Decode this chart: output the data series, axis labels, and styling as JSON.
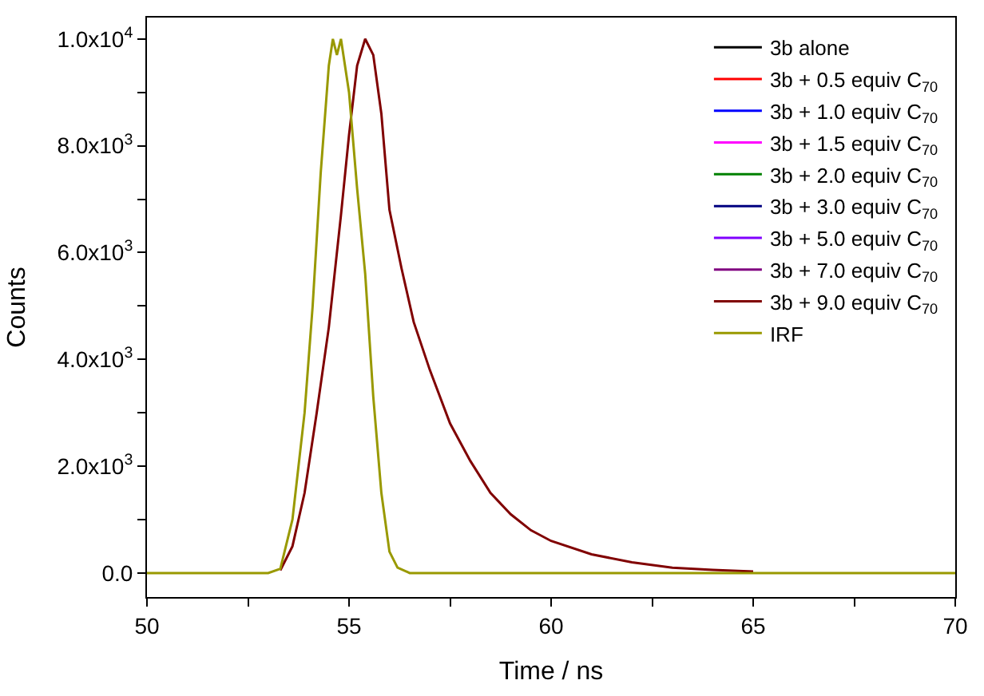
{
  "chart_data": {
    "type": "line",
    "xlabel": "Time / ns",
    "ylabel": "Counts",
    "xlim": [
      50,
      70
    ],
    "ylim": [
      -450,
      10400
    ],
    "xticks": [
      50,
      {
        "value": 52.5,
        "label": null
      },
      55,
      {
        "value": 57.5,
        "label": null
      },
      60,
      {
        "value": 62.5,
        "label": null
      },
      65,
      {
        "value": 67.5,
        "label": null
      },
      70
    ],
    "yticks": [
      {
        "value": 0,
        "label": "0.0"
      },
      {
        "value": 1000,
        "label": null
      },
      {
        "value": 2000,
        "label": "2.0x10$^{3}$"
      },
      {
        "value": 3000,
        "label": null
      },
      {
        "value": 4000,
        "label": "4.0x10$^{3}$"
      },
      {
        "value": 5000,
        "label": null
      },
      {
        "value": 6000,
        "label": "6.0x10$^{3}$"
      },
      {
        "value": 7000,
        "label": null
      },
      {
        "value": 8000,
        "label": "8.0x10$^{3}$"
      },
      {
        "value": 9000,
        "label": null
      },
      {
        "value": 10000,
        "label": "1.0x10$^{4}$"
      }
    ],
    "x": [
      53.3,
      53.6,
      53.9,
      54.2,
      54.5,
      54.8,
      55.0,
      55.2,
      55.4,
      55.6,
      55.8,
      56.0,
      56.3,
      56.6,
      57,
      57.5,
      58,
      58.5,
      59,
      59.5,
      60,
      61,
      62,
      63,
      64,
      65
    ],
    "legend": "top right",
    "line_style": "solid",
    "marker": "none",
    "series": [
      {
        "name": "3b alone",
        "color": "#000000",
        "values": [
          null,
          null,
          null,
          null,
          null,
          null,
          null,
          null,
          null,
          null,
          null,
          null,
          null,
          null,
          null,
          null,
          null,
          null,
          null,
          null,
          null,
          null,
          null,
          null,
          null,
          null
        ]
      },
      {
        "name": "3b + 0.5 equiv C$_{70}$",
        "color": "#ff0000",
        "values": [
          null,
          null,
          null,
          null,
          null,
          null,
          null,
          null,
          null,
          null,
          null,
          null,
          null,
          null,
          null,
          null,
          null,
          null,
          null,
          null,
          null,
          null,
          null,
          null,
          null,
          null
        ]
      },
      {
        "name": "3b + 1.0 equiv C$_{70}$",
        "color": "#0000ff",
        "values": [
          null,
          null,
          null,
          null,
          null,
          null,
          null,
          null,
          null,
          null,
          null,
          null,
          null,
          null,
          null,
          null,
          null,
          null,
          null,
          null,
          null,
          null,
          null,
          null,
          null,
          null
        ]
      },
      {
        "name": "3b + 1.5 equiv C$_{70}$",
        "color": "#ff00ff",
        "values": [
          null,
          null,
          null,
          null,
          null,
          null,
          null,
          null,
          null,
          null,
          null,
          null,
          null,
          null,
          null,
          null,
          null,
          null,
          null,
          null,
          null,
          null,
          null,
          null,
          null,
          null
        ]
      },
      {
        "name": "3b + 2.0 equiv C$_{70}$",
        "color": "#008000",
        "values": [
          null,
          null,
          null,
          null,
          null,
          null,
          null,
          null,
          null,
          null,
          null,
          null,
          null,
          null,
          null,
          null,
          null,
          null,
          null,
          null,
          null,
          null,
          null,
          null,
          null,
          null
        ]
      },
      {
        "name": "3b + 3.0 equiv C$_{70}$",
        "color": "#000080",
        "values": [
          null,
          null,
          null,
          null,
          null,
          null,
          null,
          null,
          null,
          null,
          null,
          null,
          null,
          null,
          null,
          null,
          null,
          null,
          null,
          null,
          null,
          null,
          null,
          null,
          null,
          null
        ]
      },
      {
        "name": "3b + 5.0 equiv C$_{70}$",
        "color": "#8000ff",
        "values": [
          null,
          null,
          null,
          null,
          null,
          null,
          null,
          null,
          null,
          null,
          null,
          null,
          null,
          null,
          null,
          null,
          null,
          null,
          null,
          null,
          null,
          null,
          null,
          null,
          null,
          null
        ]
      },
      {
        "name": "3b + 7.0 equiv C$_{70}$",
        "color": "#800080",
        "values": [
          null,
          null,
          null,
          null,
          null,
          null,
          null,
          null,
          null,
          null,
          null,
          null,
          null,
          null,
          null,
          null,
          null,
          null,
          null,
          null,
          null,
          null,
          null,
          null,
          null,
          null
        ]
      },
      {
        "name": "3b + 9.0 equiv C$_{70}$",
        "color": "#800000",
        "values": [
          50,
          500,
          1500,
          3000,
          4600,
          6700,
          8200,
          9500,
          10000,
          9700,
          8600,
          6800,
          5700,
          4700,
          3800,
          2800,
          2100,
          1500,
          1100,
          800,
          600,
          350,
          200,
          100,
          60,
          30
        ]
      },
      {
        "name": "IRF",
        "color": "#999900",
        "x": [
          50,
          53,
          53.3,
          53.6,
          53.9,
          54.1,
          54.3,
          54.5,
          54.6,
          54.7,
          54.8,
          55.0,
          55.2,
          55.4,
          55.6,
          55.8,
          56.0,
          56.2,
          56.5,
          70
        ],
        "values": [
          0,
          0,
          80,
          1000,
          3000,
          5000,
          7500,
          9500,
          10000,
          9700,
          10000,
          9000,
          7200,
          5600,
          3300,
          1500,
          400,
          100,
          0,
          0
        ]
      }
    ]
  }
}
